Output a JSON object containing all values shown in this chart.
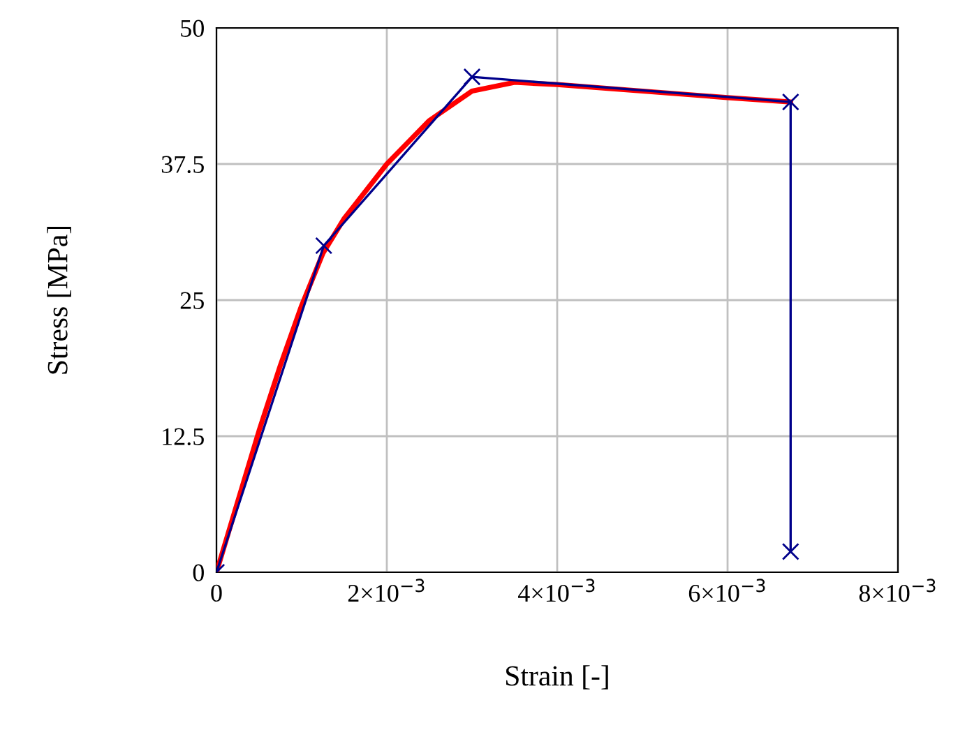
{
  "chart_data": {
    "type": "line",
    "xlabel": "Strain [-]",
    "ylabel": "Stress [MPa]",
    "xlim": [
      0,
      0.008
    ],
    "ylim": [
      0,
      50
    ],
    "xticks": [
      0,
      {
        "value": 0.002,
        "label": "2×10$^{−3}$"
      },
      {
        "value": 0.004,
        "label": "4×10$^{−3}$"
      },
      {
        "value": 0.006,
        "label": "6×10$^{−3}$"
      },
      {
        "value": 0.008,
        "label": "8×10$^{−3}$"
      }
    ],
    "yticks": [
      0,
      12.5,
      25,
      37.5,
      50
    ],
    "grid": true,
    "legend": false,
    "series": [
      {
        "color": "#ff0000",
        "marker": "none",
        "x": [
          0,
          0.00025,
          0.0005,
          0.00075,
          0.001,
          0.00125,
          0.0015,
          0.002,
          0.0025,
          0.003,
          0.0035,
          0.004,
          0.005,
          0.006,
          0.00674
        ],
        "values": [
          0,
          6.5,
          13,
          19,
          24.5,
          29.3,
          32.5,
          37.5,
          41.5,
          44.2,
          45,
          44.8,
          44.2,
          43.6,
          43.2
        ]
      },
      {
        "color": "#00008b",
        "marker": "cross",
        "x": [
          0,
          0.00126,
          0.003,
          0.00674,
          0.00674
        ],
        "values": [
          0,
          30,
          45.5,
          43.2,
          1.9
        ]
      }
    ]
  }
}
